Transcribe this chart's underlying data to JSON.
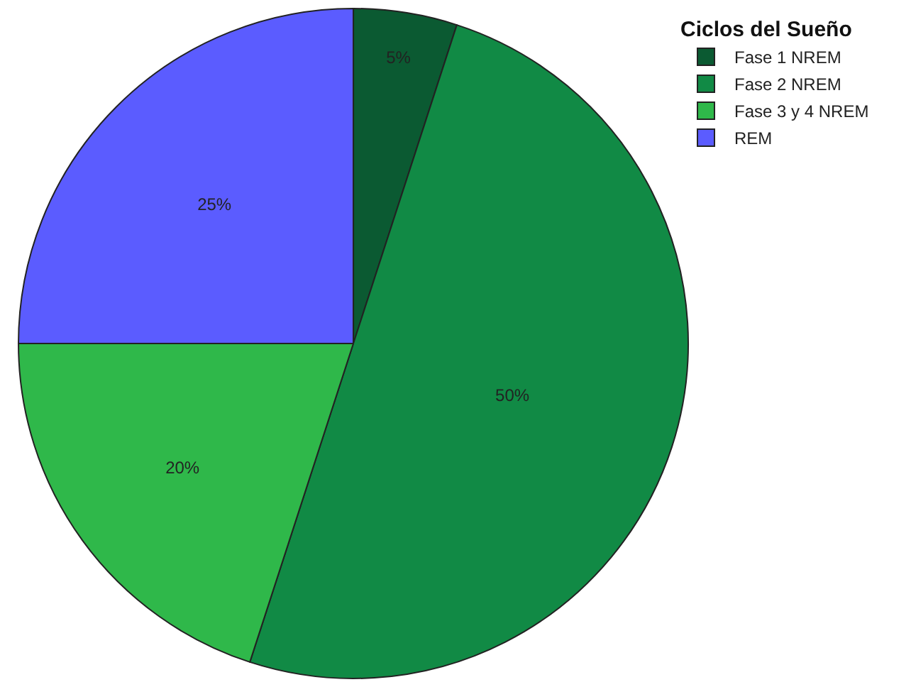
{
  "chart_data": {
    "type": "pie",
    "legend_title": "Ciclos del Sueño",
    "legend": "top right",
    "categories": [
      "Fase 1 NREM",
      "Fase 2 NREM",
      "Fase 3 y 4 NREM",
      "REM"
    ],
    "values": [
      5,
      50,
      20,
      25
    ],
    "value_labels": [
      "5%",
      "50%",
      "20%",
      "25%"
    ],
    "colors": [
      "#0b5a32",
      "#118a45",
      "#2fb84a",
      "#5b5cff"
    ]
  }
}
